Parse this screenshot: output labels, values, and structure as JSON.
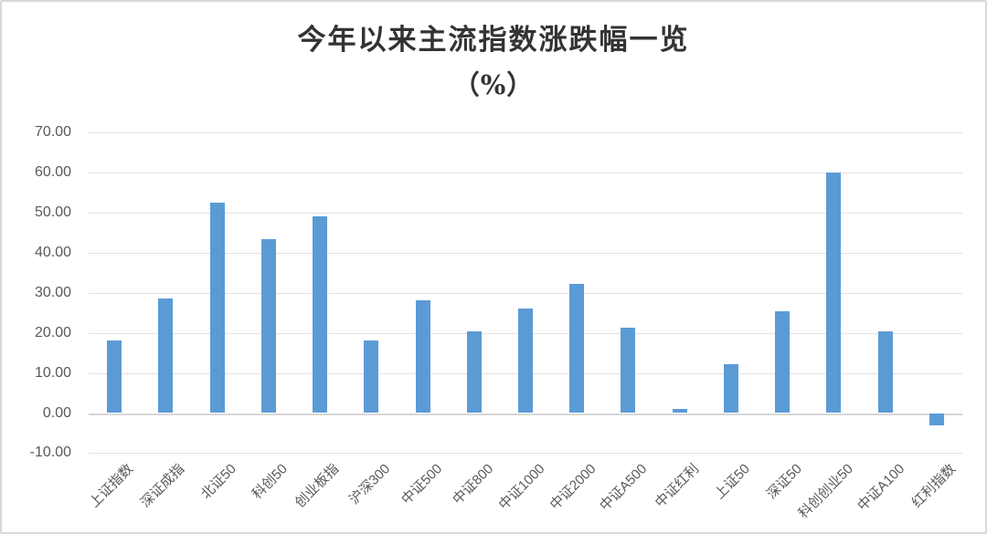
{
  "chart": {
    "title": "今年以来主流指数涨跌幅一览",
    "subtitle": "（%）",
    "accent_color": "#5B9BD5",
    "gridline_color": "#E2E2E2",
    "axis_text_color": "#595959",
    "border_color": "#D9D9D9"
  },
  "chart_data": {
    "type": "bar",
    "title": "今年以来主流指数涨跌幅一览",
    "subtitle": "（%）",
    "xlabel": "",
    "ylabel": "",
    "categories": [
      "上证指数",
      "深证成指",
      "北证50",
      "科创50",
      "创业板指",
      "沪深300",
      "中证500",
      "中证800",
      "中证1000",
      "中证2000",
      "中证A500",
      "中证红利",
      "上证50",
      "深证50",
      "科创创业50",
      "中证A100",
      "红利指数"
    ],
    "values": [
      18.0,
      28.5,
      52.4,
      43.3,
      49.0,
      18.0,
      28.1,
      20.5,
      26.0,
      32.3,
      21.4,
      1.0,
      12.3,
      25.4,
      60.0,
      20.5,
      -3.0
    ],
    "ylim": [
      -10,
      70
    ],
    "ytick_step": 10,
    "ytick_labels": [
      "70.00",
      "60.00",
      "50.00",
      "40.00",
      "30.00",
      "20.00",
      "10.00",
      "0.00",
      "-10.00"
    ],
    "grid": true,
    "legend": false,
    "bar_color": "#5B9BD5",
    "x_label_rotation_deg": 45
  }
}
